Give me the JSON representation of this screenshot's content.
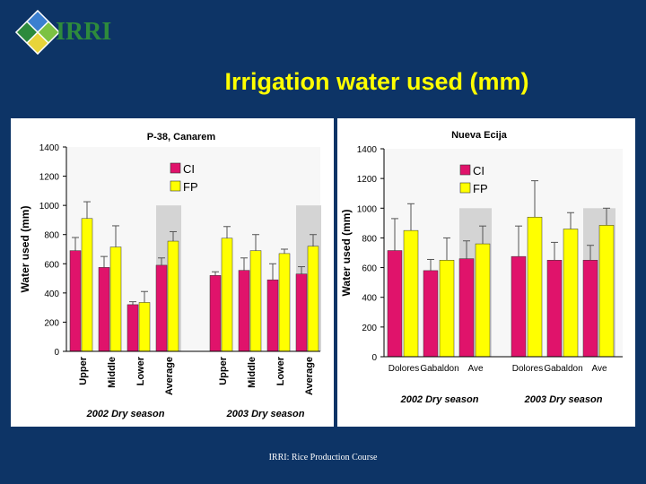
{
  "slide": {
    "logo_text": "IRRI",
    "title": "Irrigation water used (mm)",
    "footer": "IRRI: Rice Production Course"
  },
  "colors": {
    "ci": "#e0136b",
    "fp": "#ffff00",
    "background": "#0d3466",
    "title": "#ffff00",
    "highlight": "#d4d4d4"
  },
  "chart_data": [
    {
      "type": "bar",
      "title": "P-38, Canarem",
      "ylabel": "Water used (mm)",
      "xlabel": "",
      "ylim": [
        0,
        1400
      ],
      "yticks": [
        0,
        200,
        400,
        600,
        800,
        1000,
        1200,
        1400
      ],
      "legend": "top-center",
      "grid": false,
      "groups": [
        {
          "label": "2002 Dry season",
          "categories": [
            "Upper",
            "Middle",
            "Lower",
            "Average"
          ]
        },
        {
          "label": "2003 Dry season",
          "categories": [
            "Upper",
            "Middle",
            "Lower",
            "Average"
          ]
        }
      ],
      "categories": [
        "Upper",
        "Middle",
        "Lower",
        "Average",
        "Upper",
        "Middle",
        "Lower",
        "Average"
      ],
      "highlighted": [
        "Average"
      ],
      "series": [
        {
          "name": "CI",
          "values": [
            690,
            575,
            320,
            590,
            520,
            555,
            490,
            530
          ],
          "error_high": [
            780,
            650,
            340,
            640,
            545,
            640,
            600,
            580
          ]
        },
        {
          "name": "FP",
          "values": [
            910,
            715,
            335,
            755,
            775,
            690,
            670,
            720
          ],
          "error_high": [
            1025,
            860,
            410,
            820,
            855,
            800,
            700,
            800
          ]
        }
      ]
    },
    {
      "type": "bar",
      "title": "Nueva Ecija",
      "ylabel": "Water used (mm)",
      "xlabel": "",
      "ylim": [
        0,
        1400
      ],
      "yticks": [
        0,
        200,
        400,
        600,
        800,
        1000,
        1200,
        1400
      ],
      "legend": "top-left",
      "grid": false,
      "groups": [
        {
          "label": "2002 Dry season",
          "categories": [
            "Dolores",
            "Gabaldon",
            "Ave"
          ]
        },
        {
          "label": "2003 Dry season",
          "categories": [
            "Dolores",
            "Gabaldon",
            "Ave"
          ]
        }
      ],
      "categories": [
        "Dolores",
        "Gabaldon",
        "Ave",
        "Dolores",
        "Gabaldon",
        "Ave"
      ],
      "highlighted": [
        "Ave"
      ],
      "series": [
        {
          "name": "CI",
          "values": [
            715,
            580,
            660,
            675,
            650,
            650
          ],
          "error_high": [
            930,
            655,
            780,
            880,
            770,
            750
          ]
        },
        {
          "name": "FP",
          "values": [
            850,
            650,
            760,
            940,
            860,
            885
          ],
          "error_high": [
            1030,
            800,
            880,
            1185,
            970,
            1000
          ]
        }
      ]
    }
  ]
}
